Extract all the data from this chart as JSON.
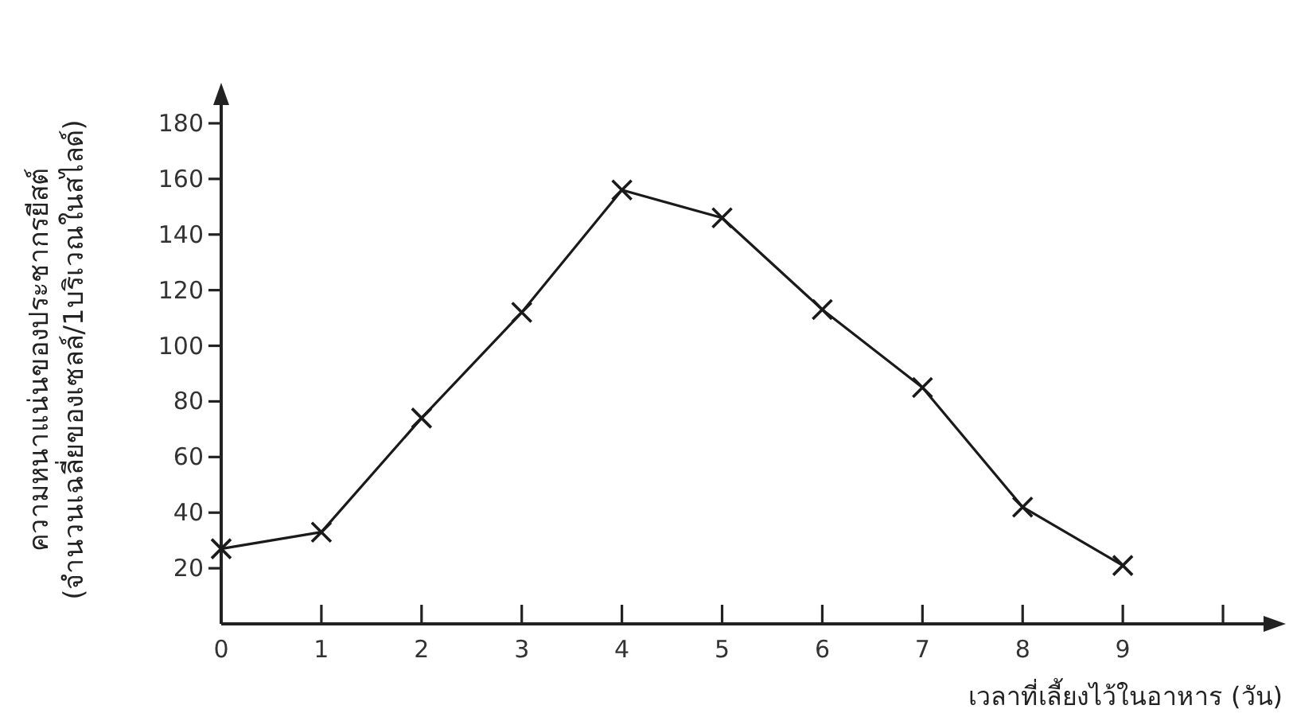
{
  "chart_data": {
    "type": "line",
    "xlabel": "เวลาที่เลี้ยงไว้ในอาหาร (วัน)",
    "ylabel": "ความหนาแน่นของประชากรยีสต์\n(จำนวนเฉลี่ยของเซลล์/1บริเวณในสไลด์)",
    "x": [
      0,
      1,
      2,
      3,
      4,
      5,
      6,
      7,
      8,
      9
    ],
    "series": [
      {
        "color": "#1a1a1a",
        "values": [
          27,
          33,
          74,
          112,
          156,
          146,
          113,
          85,
          42,
          21
        ]
      }
    ],
    "xlim": [
      0,
      10.5
    ],
    "ylim": [
      0,
      190
    ],
    "xticks": [
      0,
      1,
      2,
      3,
      4,
      5,
      6,
      7,
      8,
      9,
      {
        "value": 10,
        "label": null
      }
    ],
    "yticks": [
      20,
      40,
      60,
      80,
      100,
      120,
      140,
      160,
      180
    ],
    "marker": "cross",
    "line_style": "solid",
    "grid": false
  }
}
